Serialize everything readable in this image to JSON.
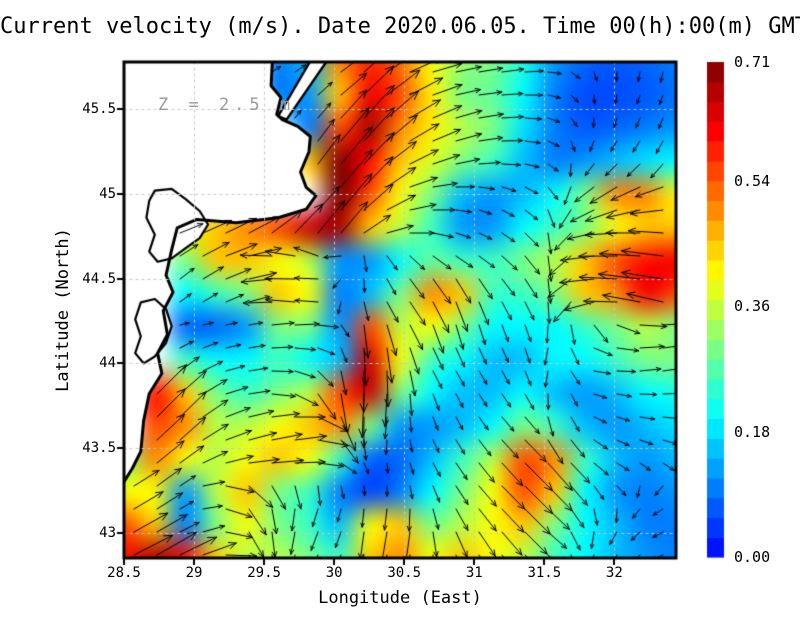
{
  "title": "Current velocity (m/s). Date 2020.06.05. Time 00(h):00(m) GMT",
  "depth_label": "Z = 2.5 m",
  "chart_data": {
    "type": "heatmap",
    "subtype": "velocity-field-with-quiver-arrows",
    "title": "Current velocity (m/s). Date 2020.06.05. Time 00(h):00(m) GMT",
    "date": "2020.06.05",
    "time_gmt": "00(h):00(m)",
    "depth_m": 2.5,
    "xlabel": "Longitude (East)",
    "ylabel": "Latitude (North)",
    "xlim": [
      28.5,
      32.44
    ],
    "ylim": [
      42.85,
      45.78
    ],
    "x_ticks": [
      28.5,
      29,
      29.5,
      30,
      30.5,
      31,
      31.5,
      32
    ],
    "y_ticks": [
      43,
      43.5,
      44,
      44.5,
      45,
      45.5
    ],
    "grid_on": true,
    "colorbar": {
      "min": 0.0,
      "max": 0.71,
      "ticks": [
        0.0,
        0.18,
        0.36,
        0.54,
        0.71
      ],
      "units": "m/s",
      "colormap": "jet",
      "position": "right"
    },
    "grid": {
      "lon": {
        "start": 28.5,
        "step": 0.21944,
        "count": 19
      },
      "lat": {
        "start": 45.78,
        "step": -0.19533,
        "count": 16
      },
      "land_value": -1,
      "speed_ms": [
        [
          -1,
          -1,
          -1,
          -1,
          -1,
          0.1,
          0.15,
          0.5,
          0.58,
          0.52,
          0.4,
          0.32,
          0.3,
          0.22,
          0.12,
          0.08,
          0.07,
          0.08,
          0.1
        ],
        [
          -1,
          -1,
          -1,
          -1,
          -1,
          0.1,
          0.12,
          0.45,
          0.62,
          0.55,
          0.42,
          0.3,
          0.28,
          0.2,
          0.1,
          0.06,
          0.06,
          0.07,
          0.09
        ],
        [
          -1,
          -1,
          -1,
          -1,
          -1,
          -1,
          0.1,
          0.55,
          0.68,
          0.5,
          0.42,
          0.35,
          0.3,
          0.18,
          0.1,
          0.07,
          0.08,
          0.1,
          0.12
        ],
        [
          -1,
          -1,
          -1,
          -1,
          -1,
          -1,
          0.45,
          0.71,
          0.6,
          0.45,
          0.38,
          0.3,
          0.25,
          0.15,
          0.1,
          0.12,
          0.15,
          0.18,
          0.2
        ],
        [
          -1,
          -1,
          -1,
          -1,
          -1,
          -1,
          -1,
          0.71,
          0.55,
          0.4,
          0.3,
          0.15,
          0.12,
          0.15,
          0.2,
          0.3,
          0.5,
          0.5,
          0.4
        ],
        [
          -1,
          -1,
          0.4,
          0.45,
          0.5,
          0.55,
          0.65,
          0.68,
          0.45,
          0.35,
          0.25,
          0.12,
          0.12,
          0.2,
          0.25,
          0.3,
          0.4,
          0.45,
          0.45
        ],
        [
          -1,
          -1,
          0.3,
          0.45,
          0.45,
          0.4,
          0.35,
          0.12,
          0.12,
          0.2,
          0.28,
          0.25,
          0.25,
          0.3,
          0.35,
          0.45,
          0.55,
          0.6,
          0.62
        ],
        [
          -1,
          -1,
          0.2,
          0.25,
          0.3,
          0.45,
          0.4,
          0.1,
          0.15,
          0.3,
          0.5,
          0.45,
          0.25,
          0.25,
          0.3,
          0.45,
          0.5,
          0.62,
          0.55
        ],
        [
          -1,
          -1,
          0.08,
          0.08,
          0.12,
          0.3,
          0.3,
          0.12,
          0.55,
          0.35,
          0.4,
          0.3,
          0.2,
          0.2,
          0.2,
          0.25,
          0.3,
          0.35,
          0.3
        ],
        [
          -1,
          -1,
          0.25,
          0.2,
          0.2,
          0.25,
          0.2,
          0.15,
          0.65,
          0.4,
          0.25,
          0.2,
          0.15,
          0.15,
          0.2,
          0.2,
          0.25,
          0.3,
          0.3
        ],
        [
          -1,
          0.6,
          0.45,
          0.3,
          0.25,
          0.3,
          0.35,
          0.55,
          0.65,
          0.3,
          0.2,
          0.15,
          0.15,
          0.2,
          0.15,
          0.12,
          0.15,
          0.2,
          0.22
        ],
        [
          -1,
          0.55,
          0.5,
          0.35,
          0.35,
          0.4,
          0.45,
          0.5,
          0.3,
          0.12,
          0.12,
          0.15,
          0.2,
          0.3,
          0.25,
          0.15,
          0.12,
          0.15,
          0.18
        ],
        [
          0.3,
          0.5,
          0.4,
          0.35,
          0.4,
          0.45,
          0.4,
          0.25,
          0.08,
          0.08,
          0.15,
          0.25,
          0.35,
          0.55,
          0.5,
          0.25,
          0.15,
          0.12,
          0.15
        ],
        [
          0.4,
          0.4,
          0.12,
          0.35,
          0.45,
          0.3,
          0.25,
          0.1,
          0.05,
          0.1,
          0.2,
          0.3,
          0.4,
          0.55,
          0.45,
          0.2,
          0.12,
          0.1,
          0.12
        ],
        [
          0.55,
          0.45,
          0.1,
          0.3,
          0.4,
          0.3,
          0.25,
          0.15,
          0.4,
          0.45,
          0.3,
          0.35,
          0.4,
          0.45,
          0.3,
          0.2,
          0.15,
          0.1,
          0.1
        ],
        [
          0.6,
          0.68,
          0.6,
          0.45,
          0.35,
          0.35,
          0.3,
          0.25,
          0.45,
          0.5,
          0.4,
          0.45,
          0.4,
          0.35,
          0.25,
          0.2,
          0.15,
          0.12,
          0.1
        ]
      ],
      "direction_deg": [
        [
          0,
          0,
          0,
          0,
          0,
          30,
          30,
          35,
          40,
          25,
          15,
          10,
          10,
          5,
          -10,
          -60,
          -90,
          -100,
          -100
        ],
        [
          0,
          0,
          0,
          0,
          0,
          40,
          45,
          40,
          45,
          30,
          20,
          10,
          5,
          0,
          -20,
          -80,
          -100,
          -110,
          -110
        ],
        [
          0,
          0,
          0,
          0,
          0,
          0,
          60,
          50,
          48,
          35,
          25,
          15,
          5,
          -5,
          -30,
          -90,
          -110,
          -115,
          -110
        ],
        [
          0,
          0,
          0,
          0,
          0,
          0,
          55,
          50,
          45,
          30,
          20,
          10,
          0,
          -10,
          -40,
          -120,
          -130,
          -130,
          -120
        ],
        [
          0,
          0,
          0,
          0,
          0,
          0,
          50,
          50,
          45,
          20,
          5,
          -10,
          -20,
          -30,
          -60,
          -140,
          -150,
          -160,
          -170
        ],
        [
          0,
          0,
          20,
          25,
          30,
          35,
          45,
          50,
          30,
          10,
          -5,
          -15,
          -25,
          -40,
          -90,
          -160,
          -175,
          180,
          175
        ],
        [
          0,
          0,
          35,
          25,
          10,
          -170,
          175,
          -140,
          -110,
          -60,
          -40,
          -35,
          -40,
          -50,
          -90,
          -170,
          180,
          175,
          170
        ],
        [
          0,
          0,
          40,
          30,
          15,
          -175,
          170,
          -130,
          -60,
          -50,
          -60,
          -70,
          -60,
          -60,
          -90,
          -170,
          175,
          170,
          170
        ],
        [
          0,
          0,
          10,
          10,
          10,
          5,
          0,
          -45,
          -85,
          -60,
          -70,
          -75,
          -70,
          -70,
          -100,
          -60,
          -20,
          0,
          5
        ],
        [
          0,
          0,
          30,
          15,
          10,
          0,
          -20,
          -70,
          -90,
          -80,
          -60,
          -60,
          -60,
          -70,
          -110,
          -10,
          0,
          10,
          10
        ],
        [
          0,
          45,
          40,
          20,
          10,
          -10,
          -40,
          -80,
          -95,
          -90,
          -70,
          -60,
          -55,
          -60,
          -100,
          -20,
          -10,
          0,
          5
        ],
        [
          0,
          45,
          45,
          25,
          15,
          10,
          5,
          -60,
          -100,
          -90,
          -70,
          -60,
          -50,
          -45,
          -80,
          -30,
          -20,
          -10,
          -10
        ],
        [
          30,
          40,
          35,
          20,
          15,
          10,
          5,
          -30,
          -90,
          -80,
          -60,
          -55,
          -50,
          -45,
          -50,
          -40,
          -30,
          -30,
          -25
        ],
        [
          30,
          35,
          30,
          0,
          -50,
          -85,
          -105,
          -100,
          -90,
          -90,
          -70,
          -55,
          -45,
          -45,
          -45,
          -60,
          -50,
          -140,
          -150
        ],
        [
          30,
          30,
          25,
          10,
          -60,
          -90,
          -110,
          -110,
          -95,
          -100,
          -80,
          -60,
          -50,
          -45,
          -40,
          -90,
          -120,
          -140,
          -160
        ],
        [
          25,
          30,
          25,
          15,
          -50,
          -90,
          -110,
          -115,
          -100,
          -110,
          -90,
          -70,
          -55,
          -45,
          -40,
          -100,
          -120,
          -150,
          -170
        ]
      ]
    },
    "coastline": [
      [
        29.56,
        45.8
      ],
      [
        29.55,
        45.64
      ],
      [
        29.62,
        45.57
      ],
      [
        29.59,
        45.47
      ],
      [
        29.63,
        45.44
      ],
      [
        29.74,
        45.4
      ],
      [
        29.83,
        45.34
      ],
      [
        29.82,
        45.25
      ],
      [
        29.76,
        45.13
      ],
      [
        29.8,
        45.04
      ],
      [
        29.87,
        44.99
      ],
      [
        29.8,
        44.91
      ],
      [
        29.6,
        44.86
      ],
      [
        29.3,
        44.83
      ],
      [
        29.02,
        44.85
      ],
      [
        28.88,
        44.8
      ],
      [
        28.84,
        44.67
      ],
      [
        28.8,
        44.52
      ],
      [
        28.85,
        44.42
      ],
      [
        28.78,
        44.31
      ],
      [
        28.81,
        44.17
      ],
      [
        28.74,
        44.06
      ],
      [
        28.77,
        43.94
      ],
      [
        28.68,
        43.82
      ],
      [
        28.64,
        43.66
      ],
      [
        28.62,
        43.48
      ],
      [
        28.56,
        43.38
      ],
      [
        28.5,
        43.3
      ]
    ],
    "spit": [
      [
        29.6,
        45.46
      ],
      [
        29.66,
        45.44
      ],
      [
        29.96,
        45.8
      ],
      [
        29.84,
        45.8
      ]
    ],
    "lakes": [
      [
        [
          28.72,
          45.02
        ],
        [
          28.84,
          45.03
        ],
        [
          28.94,
          44.97
        ],
        [
          29.04,
          44.9
        ],
        [
          29.1,
          44.82
        ],
        [
          29.04,
          44.74
        ],
        [
          28.94,
          44.68
        ],
        [
          28.84,
          44.62
        ],
        [
          28.74,
          44.6
        ],
        [
          28.68,
          44.66
        ],
        [
          28.72,
          44.76
        ],
        [
          28.66,
          44.86
        ],
        [
          28.68,
          44.96
        ]
      ],
      [
        [
          28.62,
          44.36
        ],
        [
          28.72,
          44.38
        ],
        [
          28.8,
          44.32
        ],
        [
          28.84,
          44.22
        ],
        [
          28.8,
          44.12
        ],
        [
          28.72,
          44.04
        ],
        [
          28.64,
          44.0
        ],
        [
          28.58,
          44.06
        ],
        [
          28.62,
          44.16
        ],
        [
          28.58,
          44.26
        ]
      ]
    ]
  },
  "colors": {
    "background": "#ffffff",
    "land": "#ffffff",
    "coastline": "#000000",
    "arrow": "#000000",
    "gridline": "#c8c8c8",
    "frame": "#000000",
    "depth_label": "#9a9a9a",
    "colormap_stops": [
      [
        0.0,
        [
          0,
          0,
          255
        ]
      ],
      [
        0.2857,
        [
          0,
          255,
          255
        ]
      ],
      [
        0.5714,
        [
          255,
          255,
          0
        ]
      ],
      [
        0.8571,
        [
          255,
          0,
          0
        ]
      ],
      [
        1.0,
        [
          127,
          0,
          0
        ]
      ]
    ]
  }
}
